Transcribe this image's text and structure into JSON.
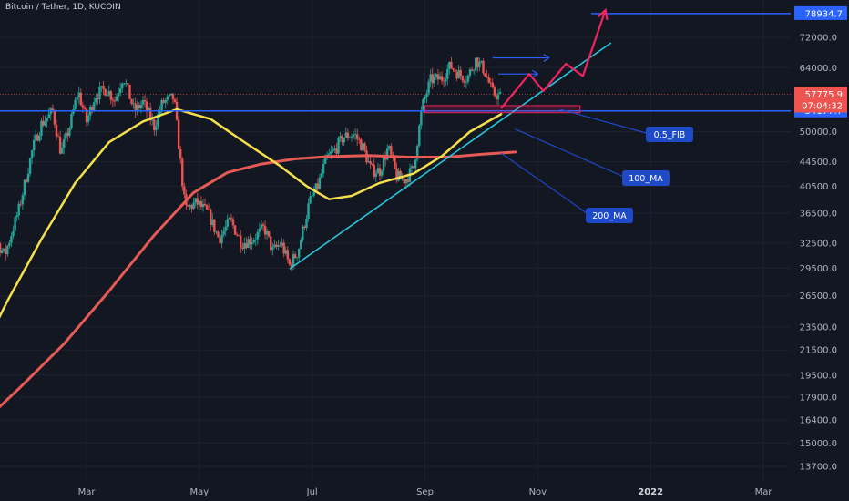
{
  "header": {
    "title": "Bitcoin / Tether, 1D, KUCOIN"
  },
  "colors": {
    "background": "#131722",
    "up": "#26a69a",
    "down": "#ef5350",
    "ma100": "#f5e04b",
    "ma200": "#e65b55",
    "trendline": "#26c6da",
    "support": "#2962ff",
    "projection": "#f0245e",
    "annotation": "#1e49c7"
  },
  "price_labels": {
    "target": "78934.7",
    "current": "57775.9",
    "countdown": "07:04:32",
    "support": "54177.7"
  },
  "annotations": {
    "fib": "0.5_FIB",
    "ma100": "100_MA",
    "ma200": "200_MA"
  },
  "chart_data": {
    "type": "candlestick",
    "title": "Bitcoin / Tether, 1D, KUCOIN",
    "scale": "log",
    "y_ticks": [
      72000.0,
      64000.0,
      50000.0,
      44500.0,
      40500.0,
      36500.0,
      32500.0,
      29500.0,
      26500.0,
      23500.0,
      21500.0,
      19500.0,
      17900.0,
      16400.0,
      15000.0,
      13700.0
    ],
    "y_tick_labels": [
      "72000.0",
      "64000.0",
      "50000.0",
      "44500.0",
      "40500.0",
      "36500.0",
      "32500.0",
      "29500.0",
      "26500.0",
      "23500.0",
      "21500.0",
      "19500.0",
      "17900.0",
      "16400.0",
      "15000.0",
      "13700.0"
    ],
    "x_ticks": [
      "Mar",
      "May",
      "Jul",
      "Sep",
      "Nov",
      "2022",
      "Mar"
    ],
    "x_ticks_bold": [
      false,
      false,
      false,
      false,
      false,
      true,
      false
    ],
    "x_tick_months": [
      2,
      4,
      6,
      8,
      10,
      12,
      14
    ],
    "price_path": [
      [
        0,
        39000
      ],
      [
        0.3,
        34000
      ],
      [
        0.55,
        31000
      ],
      [
        0.8,
        37000
      ],
      [
        1.05,
        47000
      ],
      [
        1.2,
        51500
      ],
      [
        1.4,
        54000
      ],
      [
        1.55,
        46000
      ],
      [
        1.7,
        51000
      ],
      [
        1.85,
        58500
      ],
      [
        2.0,
        52000
      ],
      [
        2.15,
        57500
      ],
      [
        2.35,
        59000
      ],
      [
        2.5,
        56500
      ],
      [
        2.65,
        62000
      ],
      [
        2.85,
        54000
      ],
      [
        3.0,
        56000
      ],
      [
        3.2,
        51000
      ],
      [
        3.35,
        56000
      ],
      [
        3.55,
        57000
      ],
      [
        3.75,
        37000
      ],
      [
        3.95,
        38000
      ],
      [
        4.15,
        36500
      ],
      [
        4.35,
        33000
      ],
      [
        4.55,
        35500
      ],
      [
        4.75,
        32500
      ],
      [
        4.95,
        33000
      ],
      [
        5.15,
        34500
      ],
      [
        5.3,
        31500
      ],
      [
        5.45,
        32500
      ],
      [
        5.6,
        29800
      ],
      [
        5.75,
        31500
      ],
      [
        5.95,
        38000
      ],
      [
        6.1,
        40500
      ],
      [
        6.25,
        45000
      ],
      [
        6.4,
        46500
      ],
      [
        6.55,
        49000
      ],
      [
        6.75,
        49500
      ],
      [
        6.9,
        47000
      ],
      [
        7.05,
        43000
      ],
      [
        7.2,
        43000
      ],
      [
        7.35,
        47000
      ],
      [
        7.5,
        42000
      ],
      [
        7.65,
        41500
      ],
      [
        7.8,
        43500
      ],
      [
        7.95,
        55000
      ],
      [
        8.1,
        61000
      ],
      [
        8.3,
        61500
      ],
      [
        8.45,
        64500
      ],
      [
        8.6,
        62500
      ],
      [
        8.75,
        61500
      ],
      [
        8.9,
        66000
      ],
      [
        9.05,
        63500
      ],
      [
        9.2,
        58000
      ],
      [
        9.35,
        57200
      ]
    ],
    "ma100": [
      [
        0,
        20000
      ],
      [
        0.6,
        26000
      ],
      [
        1.2,
        33000
      ],
      [
        1.8,
        41000
      ],
      [
        2.4,
        48000
      ],
      [
        3.0,
        52000
      ],
      [
        3.6,
        54500
      ],
      [
        4.2,
        52500
      ],
      [
        4.8,
        48000
      ],
      [
        5.4,
        44000
      ],
      [
        5.9,
        40500
      ],
      [
        6.3,
        38500
      ],
      [
        6.7,
        39000
      ],
      [
        7.2,
        41000
      ],
      [
        7.8,
        42500
      ],
      [
        8.3,
        45500
      ],
      [
        8.8,
        50000
      ],
      [
        9.35,
        53500
      ]
    ],
    "ma200": [
      [
        0,
        15700
      ],
      [
        0.8,
        18500
      ],
      [
        1.6,
        22000
      ],
      [
        2.4,
        27000
      ],
      [
        3.2,
        33500
      ],
      [
        3.9,
        39500
      ],
      [
        4.5,
        42700
      ],
      [
        5.1,
        44100
      ],
      [
        5.7,
        45000
      ],
      [
        6.3,
        45400
      ],
      [
        7.0,
        45600
      ],
      [
        7.7,
        45300
      ],
      [
        8.4,
        45300
      ],
      [
        9.0,
        45800
      ],
      [
        9.6,
        46200
      ]
    ],
    "trendline": [
      [
        5.6,
        29400
      ],
      [
        11.3,
        70500
      ]
    ],
    "support_level": 54177.7,
    "current_price": 57775.9,
    "target_price": 78934.7,
    "fib_zone": [
      53800,
      55300
    ],
    "projection_path": [
      [
        9.35,
        54700
      ],
      [
        9.85,
        62500
      ],
      [
        10.1,
        58500
      ],
      [
        10.5,
        65000
      ],
      [
        10.8,
        62000
      ],
      [
        11.2,
        80000
      ]
    ],
    "blue_arrows": [
      [
        9.2,
        66500,
        10.2,
        66500
      ],
      [
        9.3,
        62500,
        10.0,
        62500
      ]
    ]
  }
}
